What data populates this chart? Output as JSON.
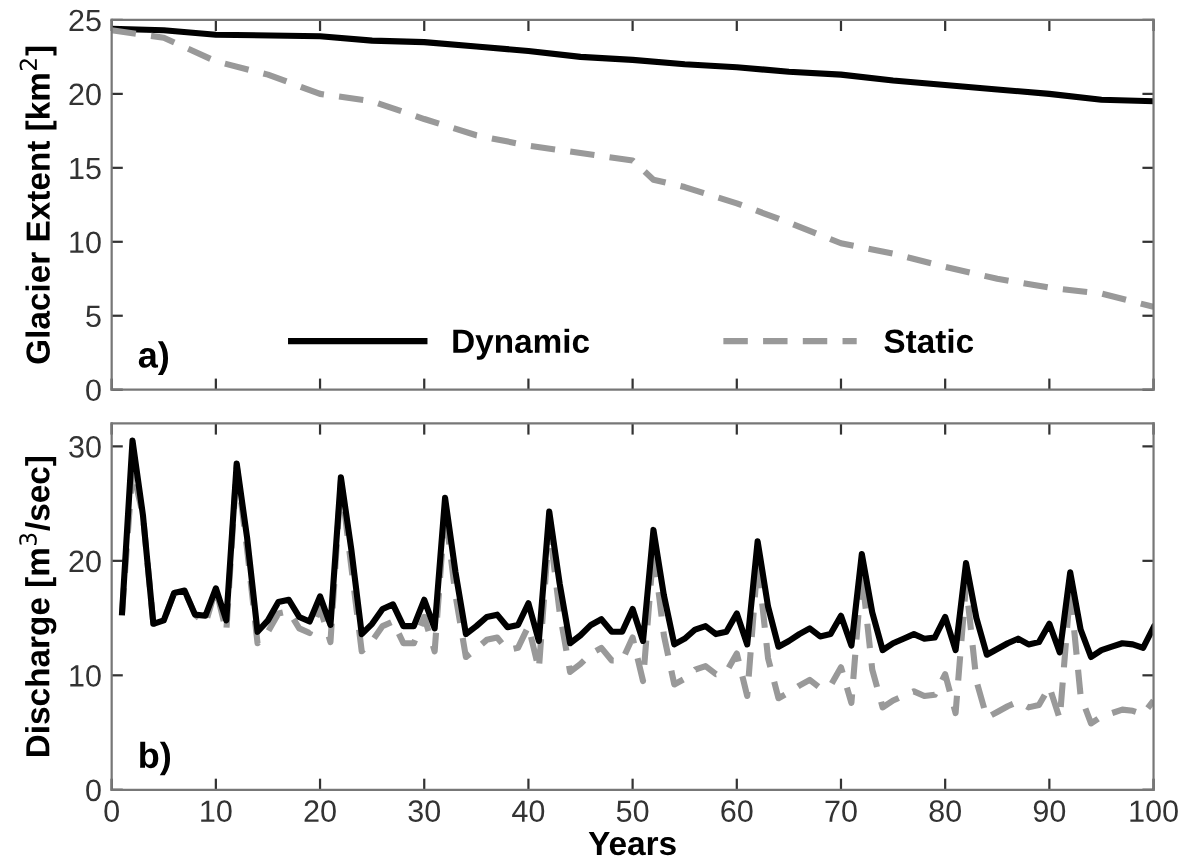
{
  "chart_data": [
    {
      "type": "line",
      "ylabel": "Glacier Extent [km$^{2}$]",
      "annotations": [
        "a)"
      ],
      "xlim": [
        0,
        100
      ],
      "xticks": [
        {
          "value": 0,
          "label": null
        },
        {
          "value": 10,
          "label": null
        },
        {
          "value": 20,
          "label": null
        },
        {
          "value": 30,
          "label": null
        },
        {
          "value": 40,
          "label": null
        },
        {
          "value": 50,
          "label": null
        },
        {
          "value": 60,
          "label": null
        },
        {
          "value": 70,
          "label": null
        },
        {
          "value": 80,
          "label": null
        },
        {
          "value": 90,
          "label": null
        },
        {
          "value": 100,
          "label": null
        }
      ],
      "ylim": [
        0,
        25
      ],
      "yticks": [
        0,
        5,
        10,
        15,
        20,
        25
      ],
      "tick_labels": "y",
      "legend": "bottom",
      "grid": false,
      "series": [
        {
          "name": "Dynamic",
          "color": "#000000",
          "line_style": "solid",
          "x": [
            0,
            5,
            10,
            20,
            25,
            30,
            35,
            40,
            45,
            50,
            55,
            60,
            65,
            70,
            75,
            80,
            85,
            90,
            95,
            100
          ],
          "values": [
            24.4,
            24.3,
            24.0,
            23.9,
            23.6,
            23.5,
            23.2,
            22.9,
            22.5,
            22.3,
            22.0,
            21.8,
            21.5,
            21.3,
            20.9,
            20.6,
            20.3,
            20.0,
            19.6,
            19.5
          ]
        },
        {
          "name": "Static",
          "color": "#999999",
          "line_style": "dashed",
          "x": [
            0,
            5,
            10,
            15,
            20,
            25,
            30,
            35,
            40,
            45,
            50,
            52,
            55,
            60,
            65,
            70,
            75,
            80,
            85,
            90,
            95,
            100
          ],
          "values": [
            24.3,
            23.8,
            22.2,
            21.3,
            20.0,
            19.5,
            18.3,
            17.2,
            16.5,
            16.0,
            15.5,
            14.2,
            13.7,
            12.6,
            11.3,
            9.9,
            9.2,
            8.3,
            7.5,
            6.9,
            6.5,
            5.6
          ]
        }
      ]
    },
    {
      "type": "line",
      "ylabel": "Discharge [m$^{3}$/sec]",
      "xlabel": "Years",
      "annotations": [
        "b)"
      ],
      "xlim": [
        0,
        100
      ],
      "xticks": [
        0,
        10,
        20,
        30,
        40,
        50,
        60,
        70,
        80,
        90,
        100
      ],
      "ylim": [
        0,
        32
      ],
      "yticks": [
        0,
        10,
        20,
        30
      ],
      "grid": false,
      "legend": false,
      "x": [
        1,
        2,
        3,
        4,
        5,
        6,
        7,
        8,
        9,
        10,
        11,
        12,
        13,
        14,
        15,
        16,
        17,
        18,
        19,
        20,
        21,
        22,
        23,
        24,
        25,
        26,
        27,
        28,
        29,
        30,
        31,
        32,
        33,
        34,
        35,
        36,
        37,
        38,
        39,
        40,
        41,
        42,
        43,
        44,
        45,
        46,
        47,
        48,
        49,
        50,
        51,
        52,
        53,
        54,
        55,
        56,
        57,
        58,
        59,
        60,
        61,
        62,
        63,
        64,
        65,
        66,
        67,
        68,
        69,
        70,
        71,
        72,
        73,
        74,
        75,
        76,
        77,
        78,
        79,
        80,
        81,
        82,
        83,
        84,
        85,
        86,
        87,
        88,
        89,
        90,
        91,
        92,
        93,
        94,
        95,
        96,
        97,
        98,
        99,
        100
      ],
      "series": [
        {
          "color": "#999999",
          "line_style": "dashed",
          "values": [
            15.5,
            28,
            24,
            14.5,
            14.8,
            17.2,
            17.4,
            15.3,
            14.5,
            17.6,
            13.8,
            28.3,
            21,
            12.8,
            13.8,
            15.4,
            15.6,
            14.1,
            13.7,
            15.9,
            12.9,
            27,
            19.5,
            12.1,
            13.0,
            14.3,
            14.7,
            12.8,
            12.8,
            15.1,
            12.1,
            24.5,
            17,
            11.6,
            12.3,
            13.1,
            13.3,
            12.2,
            12.4,
            14.3,
            10.5,
            23,
            15.5,
            10.3,
            11.0,
            11.9,
            12.4,
            11.3,
            11.3,
            13.3,
            9.5,
            21,
            13.5,
            9.2,
            9.7,
            10.5,
            10.8,
            10.1,
            10.3,
            11.9,
            8.2,
            20,
            11.5,
            8.0,
            8.5,
            9.1,
            9.6,
            8.9,
            9.1,
            10.7,
            7.6,
            19,
            10.5,
            7.2,
            7.8,
            8.2,
            8.6,
            8.2,
            8.3,
            10.1,
            6.7,
            18,
            9.5,
            6.3,
            6.8,
            7.3,
            7.7,
            7.2,
            7.4,
            9.0,
            6.2,
            17.5,
            8.2,
            5.8,
            6.4,
            6.7,
            7.0,
            6.9,
            6.6,
            7.8
          ]
        },
        {
          "color": "#000000",
          "line_style": "solid",
          "values": [
            15.5,
            30.5,
            24,
            14.5,
            14.8,
            17.2,
            17.4,
            15.3,
            15.2,
            17.6,
            14.8,
            28.5,
            22,
            13.8,
            14.8,
            16.4,
            16.6,
            15.1,
            14.7,
            16.9,
            14.4,
            27.3,
            21,
            13.6,
            14.5,
            15.8,
            16.2,
            14.3,
            14.3,
            16.6,
            14.1,
            25.5,
            19,
            13.6,
            14.3,
            15.1,
            15.3,
            14.2,
            14.4,
            16.3,
            13.0,
            24.3,
            18,
            12.8,
            13.5,
            14.4,
            14.9,
            13.8,
            13.8,
            15.8,
            13.0,
            22.7,
            17,
            12.7,
            13.2,
            14.0,
            14.3,
            13.6,
            13.8,
            15.4,
            12.7,
            21.7,
            16,
            12.5,
            13.0,
            13.6,
            14.1,
            13.4,
            13.6,
            15.2,
            12.6,
            20.6,
            15.5,
            12.2,
            12.8,
            13.2,
            13.6,
            13.2,
            13.3,
            15.1,
            12.2,
            19.8,
            15,
            11.8,
            12.3,
            12.8,
            13.2,
            12.7,
            12.9,
            14.5,
            12.0,
            19.0,
            14,
            11.6,
            12.2,
            12.5,
            12.8,
            12.7,
            12.4,
            14.2
          ]
        }
      ]
    }
  ]
}
